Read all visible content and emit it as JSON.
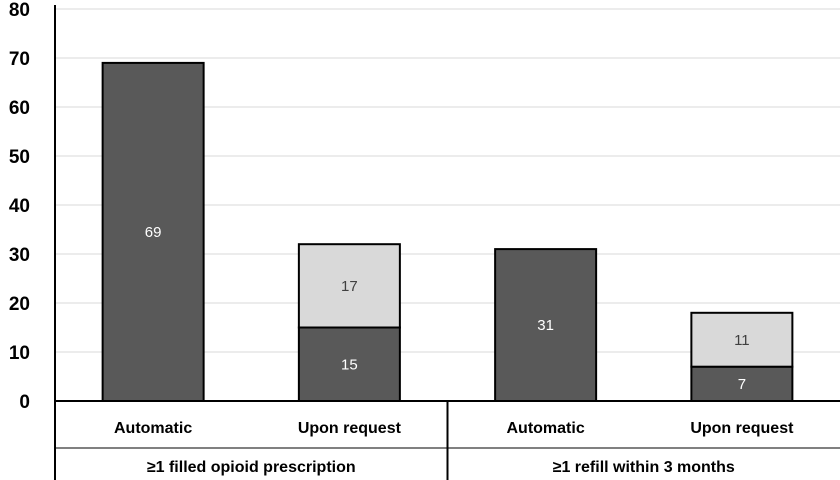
{
  "chart_data": {
    "type": "bar",
    "stacked": true,
    "title": "",
    "xlabel": "",
    "ylabel": "",
    "ylim": [
      0,
      80
    ],
    "yticks": [
      0,
      10,
      20,
      30,
      40,
      50,
      60,
      70,
      80
    ],
    "grid": true,
    "legend": "none",
    "groups": [
      {
        "label": "≥1 filled opioid prescription",
        "categories": [
          "Automatic",
          "Upon request"
        ]
      },
      {
        "label": "≥1 refill within 3 months",
        "categories": [
          "Automatic",
          "Upon request"
        ]
      }
    ],
    "categories": [
      "Automatic",
      "Upon request",
      "Automatic",
      "Upon request"
    ],
    "series": [
      {
        "values": [
          69,
          15,
          31,
          7
        ],
        "color": "#595959",
        "label_color": "#ffffff"
      },
      {
        "values": [
          0,
          17,
          0,
          11
        ],
        "color": "#d9d9d9",
        "label_color": "#404040"
      }
    ]
  }
}
